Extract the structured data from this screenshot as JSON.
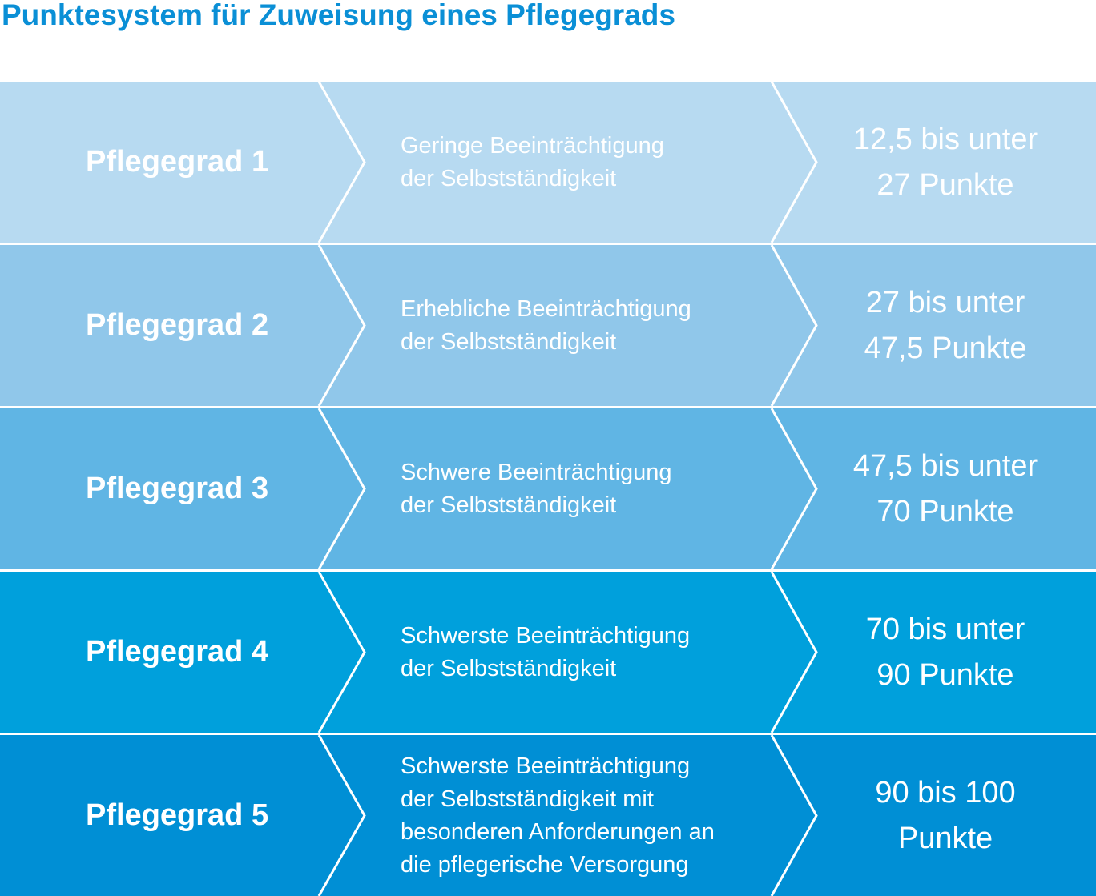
{
  "title": "Punktesystem für Zuweisung eines Pflegegrads",
  "rows": [
    {
      "grade": "Pflegegrad 1",
      "description": "Geringe Beeinträchtigung\nder Selbstständigkeit",
      "points": "12,5 bis unter\n27 Punkte",
      "color": "#b7daf1"
    },
    {
      "grade": "Pflegegrad 2",
      "description": "Erhebliche Beeinträchtigung\nder Selbstständigkeit",
      "points": "27 bis unter\n47,5 Punkte",
      "color": "#90c7ea"
    },
    {
      "grade": "Pflegegrad 3",
      "description": "Schwere Beeinträchtigung\nder Selbstständigkeit",
      "points": "47,5 bis unter\n70 Punkte",
      "color": "#60b5e4"
    },
    {
      "grade": "Pflegegrad 4",
      "description": "Schwerste Beeinträchtigung\nder Selbstständigkeit",
      "points": "70 bis unter\n90 Punkte",
      "color": "#00a0dc"
    },
    {
      "grade": "Pflegegrad 5",
      "description": "Schwerste Beeinträchtigung\nder Selbstständigkeit mit\nbesonderen Anforderungen an\ndie pflegerische Versorgung",
      "points": "90 bis 100\nPunkte",
      "color": "#008fd5"
    }
  ]
}
